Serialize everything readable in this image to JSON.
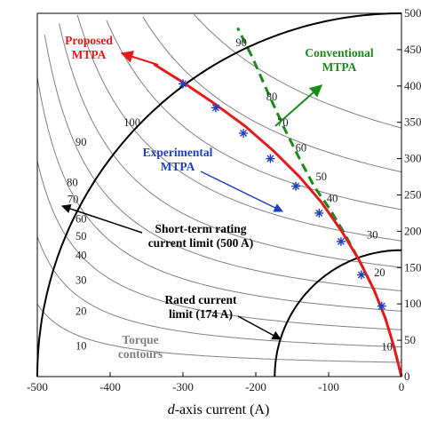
{
  "chart_data": {
    "type": "line",
    "xlabel_italic": "d",
    "xlabel_rest": "-axis current (A)",
    "xlim": [
      -500,
      0
    ],
    "ylim": [
      0,
      500
    ],
    "x_ticks": [
      "-500",
      "-400",
      "-300",
      "-200",
      "-100",
      "0"
    ],
    "y_ticks": [
      "0",
      "50",
      "100",
      "150",
      "200",
      "250",
      "300",
      "350",
      "400",
      "450",
      "500"
    ],
    "series": [
      {
        "name": "Proposed MTPA",
        "color": "#e41a1c",
        "points": [
          [
            0,
            0
          ],
          [
            -10,
            40
          ],
          [
            -22,
            80
          ],
          [
            -38,
            120
          ],
          [
            -58,
            160
          ],
          [
            -82,
            200
          ],
          [
            -110,
            240
          ],
          [
            -140,
            275
          ],
          [
            -175,
            310
          ],
          [
            -215,
            345
          ],
          [
            -260,
            378
          ],
          [
            -300,
            405
          ],
          [
            -340,
            430
          ]
        ]
      },
      {
        "name": "Conventional MTPA",
        "color": "#1b8a1b",
        "points": [
          [
            0,
            0
          ],
          [
            -10,
            40
          ],
          [
            -22,
            80
          ],
          [
            -38,
            120
          ],
          [
            -58,
            160
          ],
          [
            -80,
            200
          ],
          [
            -98,
            230
          ],
          [
            -120,
            262
          ],
          [
            -140,
            300
          ],
          [
            -160,
            340
          ],
          [
            -183,
            390
          ],
          [
            -205,
            440
          ],
          [
            -225,
            480
          ]
        ]
      },
      {
        "name": "Experimental MTPA",
        "color": "#1f3fbf",
        "markers": [
          [
            -300,
            403
          ],
          [
            -255,
            370
          ],
          [
            -217,
            335
          ],
          [
            -180,
            300
          ],
          [
            -145,
            262
          ],
          [
            -113,
            225
          ],
          [
            -83,
            186
          ],
          [
            -55,
            140
          ],
          [
            -27,
            97
          ]
        ]
      }
    ],
    "current_limits": [
      {
        "label": "Short-term rating current limit (500 A)",
        "radius": 500
      },
      {
        "label": "Rated current limit (174 A)",
        "radius": 174
      }
    ],
    "torque_contours": [
      {
        "label": "10",
        "label_at": [
          -438,
          60
        ]
      },
      {
        "label": "20",
        "label_at": [
          -20,
          135
        ]
      },
      {
        "label": "30",
        "label_at": [
          -35,
          190
        ]
      },
      {
        "label": "40",
        "label_at": [
          -95,
          235
        ]
      },
      {
        "label": "50",
        "label_at": [
          -110,
          268
        ]
      },
      {
        "label": "60",
        "label_at": [
          -140,
          305
        ]
      },
      {
        "label": "70",
        "label_at": [
          -160,
          340
        ]
      },
      {
        "label": "80",
        "label_at": [
          -173,
          375
        ]
      },
      {
        "label": "90",
        "label_at": [
          -227,
          447
        ]
      },
      {
        "label": "100",
        "label_at": [
          -285,
          408
        ]
      }
    ],
    "torque_contours_left_labels": [
      {
        "label": "10",
        "at": [
          -440,
          40
        ]
      },
      {
        "label": "20",
        "at": [
          -440,
          100
        ]
      },
      {
        "label": "30",
        "at": [
          -440,
          128
        ]
      },
      {
        "label": "40",
        "at": [
          -440,
          165
        ]
      },
      {
        "label": "50",
        "at": [
          -440,
          185
        ]
      },
      {
        "label": "60",
        "at": [
          -440,
          210
        ]
      },
      {
        "label": "70",
        "at": [
          -448,
          239
        ]
      },
      {
        "label": "80",
        "at": [
          -452,
          262
        ]
      },
      {
        "label": "90",
        "at": [
          -440,
          318
        ]
      },
      {
        "label": "100",
        "at": [
          -375,
          355
        ]
      }
    ]
  },
  "annotations": {
    "proposed_line1": "Proposed",
    "proposed_line2": "MTPA",
    "conventional_line1": "Conventional",
    "conventional_line2": "MTPA",
    "experimental_line1": "Experimental",
    "experimental_line2": "MTPA",
    "short_term_line1": "Short-term rating",
    "short_term_line2": "current limit (500 A)",
    "rated_line1": "Rated current",
    "rated_line2": "limit (174 A)",
    "torque_line1": "Torque",
    "torque_line2": "contours"
  },
  "colors": {
    "proposed": "#e41a1c",
    "conventional": "#1b8a1b",
    "experimental": "#1f3fbf",
    "torque": "#808080",
    "limit": "#000000"
  }
}
